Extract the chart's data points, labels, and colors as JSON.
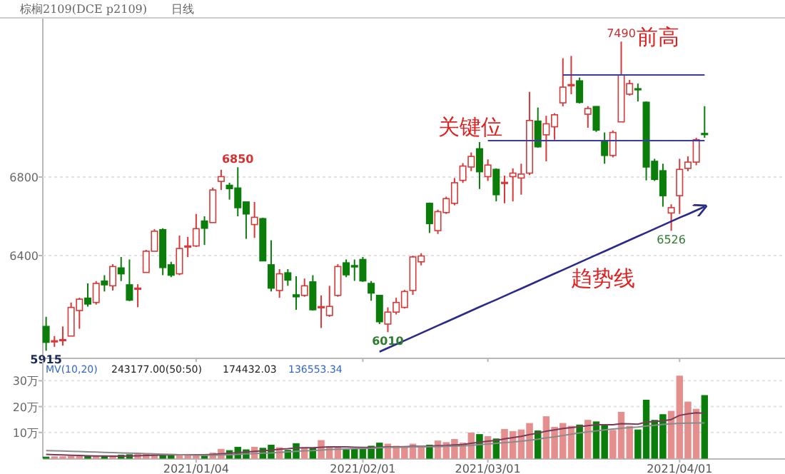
{
  "chart_data": [
    {
      "type": "candlestick",
      "title": "棕榈2109(DCE p2109)",
      "subtitle": "日线",
      "categories": [
        null,
        null,
        null,
        null,
        null,
        null,
        null,
        null,
        null,
        null,
        null,
        null,
        null,
        null,
        null,
        null,
        null,
        null,
        "2021/01/04",
        null,
        null,
        null,
        null,
        null,
        null,
        null,
        null,
        null,
        null,
        null,
        null,
        null,
        null,
        null,
        null,
        null,
        null,
        null,
        "2021/02/01",
        null,
        null,
        null,
        null,
        null,
        null,
        null,
        null,
        null,
        null,
        null,
        null,
        null,
        null,
        "2021/03/01",
        null,
        null,
        null,
        null,
        null,
        null,
        null,
        null,
        null,
        null,
        null,
        null,
        null,
        null,
        null,
        null,
        null,
        null,
        null,
        null,
        null,
        null,
        "2021/04/01",
        null,
        null,
        null
      ],
      "ohlc": [
        [
          6039,
          6088,
          5915,
          5958
        ],
        [
          5966,
          5990,
          5935,
          5966
        ],
        [
          5970,
          6039,
          5941,
          5972
        ],
        [
          5990,
          6161,
          5990,
          6136
        ],
        [
          6120,
          6185,
          6027,
          6178
        ],
        [
          6183,
          6258,
          6140,
          6153
        ],
        [
          6161,
          6270,
          6150,
          6258
        ],
        [
          6270,
          6300,
          6217,
          6251
        ],
        [
          6246,
          6356,
          6222,
          6344
        ],
        [
          6337,
          6393,
          6270,
          6307
        ],
        [
          6251,
          6380,
          6168,
          6173
        ],
        [
          6230,
          6254,
          6137,
          6234
        ],
        [
          6314,
          6429,
          6314,
          6422
        ],
        [
          6422,
          6534,
          6422,
          6524
        ],
        [
          6532,
          6539,
          6300,
          6339
        ],
        [
          6353,
          6368,
          6290,
          6300
        ],
        [
          6307,
          6502,
          6300,
          6436
        ],
        [
          6444,
          6495,
          6392,
          6449
        ],
        [
          6449,
          6612,
          6444,
          6537
        ],
        [
          6576,
          6600,
          6454,
          6539
        ],
        [
          6568,
          6746,
          6568,
          6734
        ],
        [
          6778,
          6837,
          6734,
          6802
        ],
        [
          6758,
          6771,
          6685,
          6741
        ],
        [
          6744,
          6850,
          6600,
          6644
        ],
        [
          6673,
          6673,
          6485,
          6612
        ],
        [
          6558,
          6673,
          6490,
          6595
        ],
        [
          6588,
          6593,
          6373,
          6373
        ],
        [
          6353,
          6478,
          6217,
          6234
        ],
        [
          6222,
          6331,
          6185,
          6307
        ],
        [
          6312,
          6331,
          6246,
          6275
        ],
        [
          6200,
          6295,
          6124,
          6190
        ],
        [
          6197,
          6283,
          6190,
          6246
        ],
        [
          6266,
          6300,
          6120,
          6124
        ],
        [
          6134,
          6197,
          6031,
          6140
        ],
        [
          6095,
          6246,
          6088,
          6141
        ],
        [
          6197,
          6356,
          6190,
          6344
        ],
        [
          6363,
          6380,
          6290,
          6302
        ],
        [
          6349,
          6380,
          6271,
          6342
        ],
        [
          6380,
          6393,
          6266,
          6271
        ],
        [
          6258,
          6270,
          6170,
          6209
        ],
        [
          6197,
          6197,
          6051,
          6063
        ],
        [
          6051,
          6136,
          6010,
          6112
        ],
        [
          6112,
          6185,
          6100,
          6161
        ],
        [
          6136,
          6225,
          6130,
          6217
        ],
        [
          6222,
          6400,
          6200,
          6393
        ],
        [
          6368,
          6412,
          6350,
          6398
        ],
        [
          6666,
          6670,
          6515,
          6563
        ],
        [
          6527,
          6634,
          6510,
          6624
        ],
        [
          6619,
          6700,
          6612,
          6690
        ],
        [
          6666,
          6795,
          6656,
          6771
        ],
        [
          6783,
          6871,
          6770,
          6856
        ],
        [
          6851,
          6925,
          6830,
          6905
        ],
        [
          6944,
          6978,
          6739,
          6827
        ],
        [
          6802,
          6890,
          6780,
          6861
        ],
        [
          6839,
          6844,
          6676,
          6710
        ],
        [
          6768,
          6807,
          6666,
          6773
        ],
        [
          6802,
          6844,
          6676,
          6820
        ],
        [
          6795,
          6868,
          6710,
          6815
        ],
        [
          6820,
          7234,
          6810,
          7088
        ],
        [
          7085,
          7154,
          6950,
          6954
        ],
        [
          7015,
          7112,
          6880,
          7071
        ],
        [
          7056,
          7125,
          6990,
          7117
        ],
        [
          7178,
          7405,
          7160,
          7258
        ],
        [
          7266,
          7417,
          7222,
          7271
        ],
        [
          7290,
          7307,
          7175,
          7180
        ],
        [
          7120,
          7161,
          7051,
          7149
        ],
        [
          7159,
          7161,
          7030,
          7039
        ],
        [
          6985,
          7027,
          6868,
          6910
        ],
        [
          6910,
          7037,
          6900,
          7027
        ],
        [
          7081,
          7490,
          7081,
          7320
        ],
        [
          7222,
          7295,
          7215,
          7276
        ],
        [
          7250,
          7276,
          7185,
          7246
        ],
        [
          7181,
          7185,
          6783,
          6851
        ],
        [
          6880,
          6893,
          6780,
          6788
        ],
        [
          6832,
          6868,
          6649,
          6705
        ],
        [
          6617,
          6661,
          6526,
          6644
        ],
        [
          6705,
          6893,
          6612,
          6839
        ],
        [
          6844,
          6905,
          6830,
          6876
        ],
        [
          6876,
          7000,
          6860,
          6990
        ],
        [
          7022,
          7161,
          7000,
          7017
        ]
      ],
      "ylim": [
        5880,
        7600
      ],
      "yticks": [
        6400,
        6800
      ],
      "grid": "y",
      "tick_labels": "y",
      "series": [
        {
          "type": "line",
          "color": "#3a3aa0",
          "values": [
            null,
            null,
            null,
            null,
            null,
            null,
            null,
            null,
            null,
            null,
            null,
            null,
            null,
            null,
            null,
            null,
            null,
            null,
            null,
            null,
            null,
            null,
            null,
            null,
            null,
            null,
            null,
            null,
            null,
            null,
            null,
            null,
            null,
            null,
            null,
            null,
            null,
            null,
            null,
            null,
            null,
            null,
            null,
            null,
            null,
            null,
            null,
            null,
            null,
            null,
            null,
            null,
            null,
            null,
            null,
            null,
            null,
            null,
            null,
            null,
            null,
            null,
            7320,
            7320,
            7320,
            7320,
            7320,
            7320,
            7320,
            7320,
            7320,
            7320,
            7320,
            7320,
            7320,
            7320,
            7320,
            7320,
            7320,
            7320
          ]
        },
        {
          "type": "line",
          "color": "#3a3aa0",
          "values": [
            null,
            null,
            null,
            null,
            null,
            null,
            null,
            null,
            null,
            null,
            null,
            null,
            null,
            null,
            null,
            null,
            null,
            null,
            null,
            null,
            null,
            null,
            null,
            null,
            null,
            null,
            null,
            null,
            null,
            null,
            null,
            null,
            null,
            null,
            null,
            null,
            null,
            null,
            null,
            null,
            null,
            null,
            null,
            null,
            null,
            null,
            null,
            null,
            null,
            null,
            null,
            null,
            null,
            6985,
            6985,
            6985,
            6985,
            6985,
            6985,
            6985,
            6985,
            6985,
            6985,
            6985,
            6985,
            6985,
            6985,
            6985,
            6985,
            6985,
            6985,
            6985,
            6985,
            6985,
            6985,
            6985,
            6985,
            6985,
            6985,
            6985
          ]
        },
        {
          "type": "line",
          "color": "#2a2a8a",
          "values": [
            null,
            null,
            null,
            null,
            null,
            null,
            null,
            null,
            null,
            null,
            null,
            null,
            null,
            null,
            null,
            null,
            null,
            null,
            null,
            null,
            null,
            null,
            null,
            null,
            null,
            null,
            null,
            null,
            null,
            null,
            null,
            null,
            null,
            null,
            null,
            null,
            null,
            null,
            null,
            null,
            5910,
            5929,
            5948,
            5967,
            5986,
            6005,
            6024,
            6043,
            6062,
            6081,
            6100,
            6119,
            6138,
            6157,
            6175,
            6194,
            6213,
            6232,
            6251,
            6270,
            6289,
            6308,
            6327,
            6346,
            6365,
            6384,
            6403,
            6422,
            6441,
            6460,
            6479,
            6498,
            6517,
            6536,
            6555,
            6574,
            6593,
            6611,
            6630,
            6649
          ]
        }
      ],
      "annotations": [
        {
          "text": "6850",
          "y": 6850
        },
        {
          "text": "7490",
          "y": 7490
        },
        {
          "text": "6010",
          "y": 6010
        },
        {
          "text": "6526",
          "y": 6526
        },
        {
          "text": "5915",
          "y": 5915
        },
        "前高",
        "关键位",
        "趋势线"
      ]
    },
    {
      "type": "bar",
      "categories": [
        null,
        null,
        null,
        null,
        null,
        null,
        null,
        null,
        null,
        null,
        null,
        null,
        null,
        null,
        null,
        null,
        null,
        null,
        "2021/01/04",
        null,
        null,
        null,
        null,
        null,
        null,
        null,
        null,
        null,
        null,
        null,
        null,
        null,
        null,
        null,
        null,
        null,
        null,
        null,
        "2021/02/01",
        null,
        null,
        null,
        null,
        null,
        null,
        null,
        null,
        null,
        null,
        null,
        null,
        null,
        null,
        "2021/03/01",
        null,
        null,
        null,
        null,
        null,
        null,
        null,
        null,
        null,
        null,
        null,
        null,
        null,
        null,
        null,
        null,
        null,
        null,
        null,
        null,
        null,
        null,
        "2021/04/01",
        null,
        null,
        null
      ],
      "ylim": [
        0,
        37
      ],
      "yticks": [
        {
          "value": 10,
          "label": "10万"
        },
        {
          "value": 20,
          "label": "20万"
        },
        {
          "value": 30,
          "label": "30万"
        }
      ],
      "grid": "y",
      "series": [
        {
          "type": "bar",
          "values": [
            0.5,
            0.6,
            0.6,
            0.8,
            0.7,
            0.8,
            0.9,
            0.8,
            1.0,
            1.2,
            1.4,
            1.6,
            1.7,
            1.4,
            1.4,
            1.2,
            1.2,
            1.3,
            1.2,
            1.5,
            2.0,
            3.5,
            3.0,
            4.3,
            3.3,
            4.3,
            3.9,
            5.1,
            4.1,
            3.1,
            5.7,
            4.1,
            3.9,
            6.9,
            4.5,
            4.5,
            3.3,
            3.7,
            3.7,
            4.7,
            5.9,
            5.5,
            4.7,
            4.3,
            5.5,
            4.3,
            5.1,
            6.7,
            6.1,
            7.3,
            5.9,
            9.8,
            9.2,
            8.4,
            7.5,
            11.2,
            10.4,
            11.0,
            13.5,
            10.6,
            16.1,
            12.0,
            13.5,
            12.4,
            12.9,
            14.7,
            14.1,
            12.7,
            10.8,
            17.8,
            12.4,
            11.0,
            22.5,
            14.7,
            16.9,
            18.2,
            31.8,
            21.8,
            19.0,
            24.3
          ],
          "colors": [
            "#0b7d0b",
            "#e58e8e",
            "#e58e8e",
            "#e58e8e",
            "#e58e8e",
            "#0b7d0b",
            "#e58e8e",
            "#0b7d0b",
            "#e58e8e",
            "#0b7d0b",
            "#0b7d0b",
            "#e58e8e",
            "#e58e8e",
            "#e58e8e",
            "#0b7d0b",
            "#0b7d0b",
            "#e58e8e",
            "#e58e8e",
            "#e58e8e",
            "#0b7d0b",
            "#e58e8e",
            "#e58e8e",
            "#0b7d0b",
            "#0b7d0b",
            "#0b7d0b",
            "#e58e8e",
            "#0b7d0b",
            "#0b7d0b",
            "#e58e8e",
            "#0b7d0b",
            "#0b7d0b",
            "#e58e8e",
            "#0b7d0b",
            "#e58e8e",
            "#e58e8e",
            "#e58e8e",
            "#0b7d0b",
            "#0b7d0b",
            "#0b7d0b",
            "#0b7d0b",
            "#0b7d0b",
            "#e58e8e",
            "#e58e8e",
            "#e58e8e",
            "#e58e8e",
            "#e58e8e",
            "#0b7d0b",
            "#e58e8e",
            "#e58e8e",
            "#e58e8e",
            "#e58e8e",
            "#e58e8e",
            "#0b7d0b",
            "#e58e8e",
            "#0b7d0b",
            "#e58e8e",
            "#e58e8e",
            "#e58e8e",
            "#e58e8e",
            "#0b7d0b",
            "#e58e8e",
            "#e58e8e",
            "#e58e8e",
            "#e58e8e",
            "#0b7d0b",
            "#e58e8e",
            "#0b7d0b",
            "#0b7d0b",
            "#e58e8e",
            "#e58e8e",
            "#e58e8e",
            "#0b7d0b",
            "#0b7d0b",
            "#0b7d0b",
            "#0b7d0b",
            "#e58e8e",
            "#e58e8e",
            "#e58e8e",
            "#e58e8e",
            "#0b7d0b"
          ]
        },
        {
          "type": "line",
          "color": "#7a3b5a",
          "values": [
            1.5,
            1.4,
            1.3,
            1.2,
            1.1,
            1.0,
            0.9,
            0.9,
            0.8,
            0.8,
            0.9,
            1.0,
            1.1,
            1.2,
            1.3,
            1.3,
            1.4,
            1.4,
            1.4,
            1.4,
            1.5,
            1.7,
            1.9,
            2.2,
            2.4,
            2.7,
            2.9,
            3.2,
            3.5,
            3.7,
            4.0,
            4.1,
            4.1,
            4.3,
            4.4,
            4.4,
            4.4,
            4.3,
            4.2,
            4.2,
            4.3,
            4.4,
            4.4,
            4.5,
            4.6,
            4.6,
            4.7,
            4.9,
            5.0,
            5.2,
            5.3,
            5.8,
            6.2,
            6.6,
            6.9,
            7.5,
            8.0,
            8.5,
            9.2,
            9.7,
            10.5,
            11.0,
            11.5,
            11.9,
            12.2,
            12.6,
            13.0,
            13.0,
            13.0,
            13.4,
            13.3,
            13.2,
            14.0,
            14.2,
            14.5,
            15.0,
            16.6,
            17.2,
            17.6,
            17.4
          ]
        },
        {
          "type": "line",
          "color": "#8a8a8a",
          "values": [
            3.0,
            2.9,
            2.8,
            2.7,
            2.6,
            2.5,
            2.4,
            2.3,
            2.2,
            2.1,
            2.0,
            1.9,
            1.8,
            1.7,
            1.6,
            1.5,
            1.4,
            1.3,
            1.2,
            1.2,
            1.2,
            1.3,
            1.4,
            1.5,
            1.7,
            1.8,
            2.0,
            2.1,
            2.3,
            2.5,
            2.7,
            2.9,
            3.0,
            3.2,
            3.4,
            3.5,
            3.6,
            3.7,
            3.8,
            3.9,
            4.1,
            4.2,
            4.3,
            4.3,
            4.4,
            4.4,
            4.5,
            4.5,
            4.6,
            4.7,
            4.8,
            5.0,
            5.3,
            5.5,
            5.8,
            6.1,
            6.3,
            6.6,
            7.0,
            7.4,
            7.9,
            8.3,
            8.8,
            9.3,
            9.8,
            10.2,
            10.6,
            11.0,
            11.3,
            11.6,
            11.9,
            12.1,
            12.5,
            12.8,
            13.1,
            13.3,
            13.5,
            13.6,
            13.7,
            13.7
          ]
        }
      ],
      "annotations": [
        "MV(10,20)",
        "243177.00(50:50)",
        "174432.03",
        "136553.34"
      ]
    }
  ]
}
